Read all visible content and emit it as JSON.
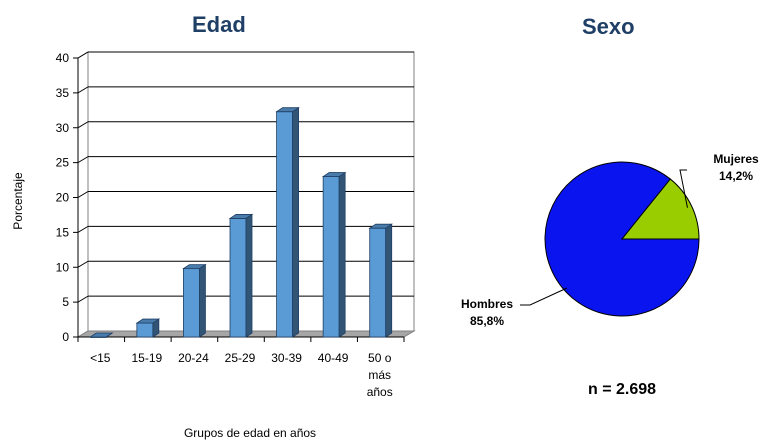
{
  "chart_data": [
    {
      "type": "bar",
      "title": "Edad",
      "xlabel": "Grupos de edad en años",
      "ylabel": "Porcentaje",
      "categories": [
        "<15",
        "15-19",
        "20-24",
        "25-29",
        "30-39",
        "40-49",
        "50 o más años"
      ],
      "category_lines": [
        [
          "<15"
        ],
        [
          "15-19"
        ],
        [
          "20-24"
        ],
        [
          "25-29"
        ],
        [
          "30-39"
        ],
        [
          "40-49"
        ],
        [
          "50 o",
          "más",
          "años"
        ]
      ],
      "values": [
        0,
        2,
        9.8,
        17,
        32.3,
        23,
        15.6
      ],
      "ylim": [
        0,
        40
      ],
      "yticks": [
        "0",
        "5",
        "10",
        "15",
        "20",
        "25",
        "30",
        "35",
        "40"
      ],
      "grid": true,
      "bar_color": "#5b9bd5"
    },
    {
      "type": "pie",
      "title": "Sexo",
      "slices": [
        {
          "label": "Hombres",
          "value_label": "85,8%",
          "value": 85.8,
          "color": "#0a14ef"
        },
        {
          "label": "Mujeres",
          "value_label": "14,2%",
          "value": 14.2,
          "color": "#9acd00"
        }
      ]
    }
  ],
  "sample_size_label": "n = 2.698"
}
